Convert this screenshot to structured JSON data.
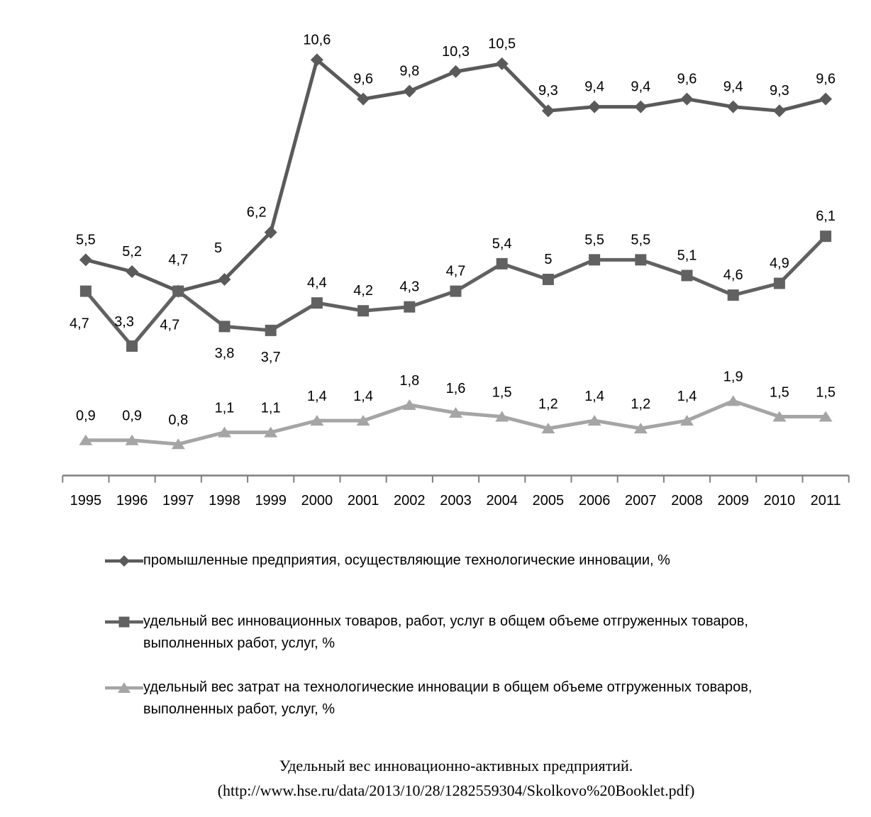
{
  "chart_data": {
    "type": "line",
    "title": "",
    "xlabel": "",
    "ylabel": "",
    "ylim": [
      0,
      12
    ],
    "grid": false,
    "legend_position": "bottom",
    "axis_color": "#7f7f7f",
    "label_color": "#000000",
    "categories": [
      "1995",
      "1996",
      "1997",
      "1998",
      "1999",
      "2000",
      "2001",
      "2002",
      "2003",
      "2004",
      "2005",
      "2006",
      "2007",
      "2008",
      "2009",
      "2010",
      "2011"
    ],
    "series": [
      {
        "name": "промышленные предприятия, осуществляющие технологические инновации, %",
        "legend_lines": [
          "промышленные предприятия, осуществляющие технологические инновации, %"
        ],
        "marker": "diamond",
        "color": "#5a5a5a",
        "values": [
          5.5,
          5.2,
          4.7,
          5,
          6.2,
          10.6,
          9.6,
          9.8,
          10.3,
          10.5,
          9.3,
          9.4,
          9.4,
          9.6,
          9.4,
          9.3,
          9.6
        ],
        "labels": [
          "5,5",
          "5,2",
          "4,7",
          "5",
          "6,2",
          "10,6",
          "9,6",
          "9,8",
          "10,3",
          "10,5",
          "9,3",
          "9,4",
          "9,4",
          "9,6",
          "9,4",
          "9,3",
          "9,6"
        ],
        "label_pos": [
          "above",
          "above",
          "above",
          "above",
          "above",
          "above",
          "above",
          "above",
          "above",
          "above",
          "above",
          "above",
          "above",
          "above",
          "above",
          "above",
          "above"
        ],
        "label_dy_above": -22,
        "label_offsets": {
          "2": [
            0,
            -16
          ],
          "3": [
            -9,
            -16
          ],
          "4": [
            -20,
            0
          ]
        }
      },
      {
        "name": "удельный вес инновационных товаров, работ, услуг в общем объеме отгруженных товаров, выполненных работ, услуг, %",
        "legend_lines": [
          "удельный вес инновационных товаров, работ, услуг в общем объеме отгруженных товаров,",
          "выполненных работ, услуг, %"
        ],
        "marker": "square",
        "color": "#616161",
        "values": [
          4.7,
          3.3,
          4.7,
          3.8,
          3.7,
          4.4,
          4.2,
          4.3,
          4.7,
          5.4,
          5,
          5.5,
          5.5,
          5.1,
          4.6,
          4.9,
          6.1
        ],
        "labels": [
          "4,7",
          "3,3",
          "4,7",
          "3,8",
          "3,7",
          "4,4",
          "4,2",
          "4,3",
          "4,7",
          "5,4",
          "5",
          "5,5",
          "5,5",
          "5,1",
          "4,6",
          "4,9",
          "6,1"
        ],
        "label_pos": [
          "below",
          "above",
          "below",
          "below",
          "below",
          "above",
          "above",
          "above",
          "above",
          "above",
          "above",
          "above",
          "above",
          "above",
          "above",
          "above",
          "above"
        ],
        "label_dy_above": -22,
        "label_offsets": {
          "0": [
            -9,
            8
          ],
          "1": [
            -11,
            -6
          ],
          "2": [
            -12,
            10
          ]
        }
      },
      {
        "name": "удельный вес затрат на технологические инновации в общем объеме отгруженных товаров, выполненных работ, услуг, %",
        "legend_lines": [
          "удельный вес затрат на технологические инновации в общем объеме  отгруженных товаров,",
          "выполненных работ, услуг, %"
        ],
        "marker": "triangle",
        "color": "#a5a5a5",
        "values": [
          0.9,
          0.9,
          0.8,
          1.1,
          1.1,
          1.4,
          1.4,
          1.8,
          1.6,
          1.5,
          1.2,
          1.4,
          1.2,
          1.4,
          1.9,
          1.5,
          1.5
        ],
        "labels": [
          "0,9",
          "0,9",
          "0,8",
          "1,1",
          "1,1",
          "1,4",
          "1,4",
          "1,8",
          "1,6",
          "1,5",
          "1,2",
          "1,4",
          "1,2",
          "1,4",
          "1,9",
          "1,5",
          "1,5"
        ],
        "label_pos": [
          "above",
          "above",
          "above",
          "above",
          "above",
          "above",
          "above",
          "above",
          "above",
          "above",
          "above",
          "above",
          "above",
          "above",
          "above",
          "above",
          "above"
        ],
        "label_dy_above": -28,
        "label_offsets": {}
      }
    ]
  },
  "caption": {
    "title": "Удельный вес инновационно-активных предприятий.",
    "source": "(http://www.hse.ru/data/2013/10/28/1282559304/Skolkovo%20Booklet.pdf)"
  }
}
